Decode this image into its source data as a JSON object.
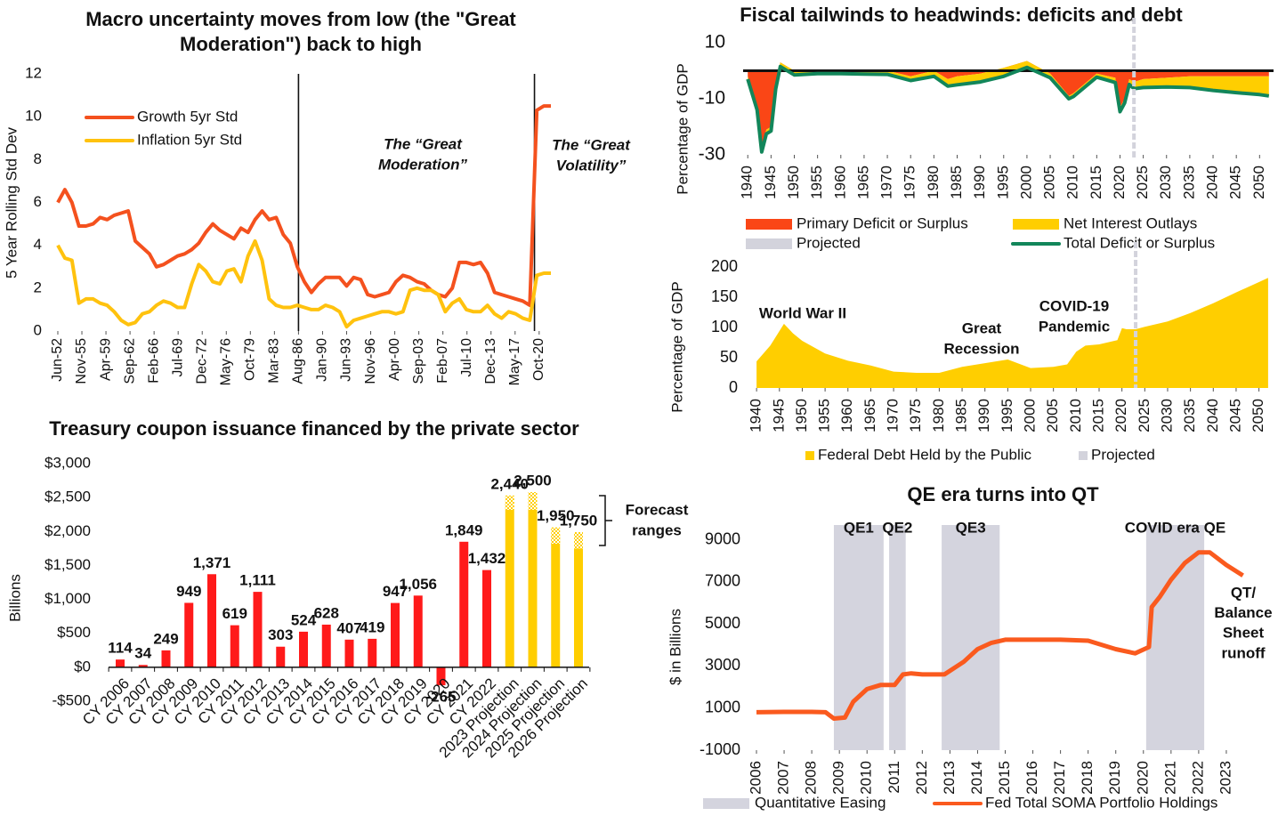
{
  "chart_data": [
    {
      "type": "line",
      "title": "Macro uncertainty moves from low (the \"Great Moderation\") back to high",
      "y_label": "5 Year Rolling Std Dev",
      "x": [
        "1952-06",
        "1953-06",
        "1954-06",
        "1955-06",
        "1956-06",
        "1957-06",
        "1958-06",
        "1959-06",
        "1960-06",
        "1961-06",
        "1962-06",
        "1963-06",
        "1964-06",
        "1965-06",
        "1966-06",
        "1967-06",
        "1968-06",
        "1969-06",
        "1970-06",
        "1971-06",
        "1972-06",
        "1973-06",
        "1974-06",
        "1975-06",
        "1976-06",
        "1977-06",
        "1978-06",
        "1979-06",
        "1980-06",
        "1981-06",
        "1982-06",
        "1983-06",
        "1984-06",
        "1985-06",
        "1986-06",
        "1987-06",
        "1988-06",
        "1989-06",
        "1990-06",
        "1991-06",
        "1992-06",
        "1993-06",
        "1994-06",
        "1995-06",
        "1996-06",
        "1997-06",
        "1998-06",
        "1999-06",
        "2000-06",
        "2001-06",
        "2002-06",
        "2003-06",
        "2004-06",
        "2005-06",
        "2006-06",
        "2007-06",
        "2008-06",
        "2009-06",
        "2010-06",
        "2011-06",
        "2012-06",
        "2013-06",
        "2014-06",
        "2015-06",
        "2016-06",
        "2017-06",
        "2018-06",
        "2019-06",
        "2020-06",
        "2021-06",
        "2022-06"
      ],
      "xlim": [
        "1952-03",
        "2022-09"
      ],
      "xticks": [
        {
          "value": "1952-06",
          "label": "Jun-52"
        },
        {
          "value": "1955-11",
          "label": "Nov-55"
        },
        {
          "value": "1959-04",
          "label": "Apr-59"
        },
        {
          "value": "1962-09",
          "label": "Sep-62"
        },
        {
          "value": "1966-02",
          "label": "Feb-66"
        },
        {
          "value": "1969-07",
          "label": "Jul-69"
        },
        {
          "value": "1972-12",
          "label": "Dec-72"
        },
        {
          "value": "1976-05",
          "label": "May-76"
        },
        {
          "value": "1979-10",
          "label": "Oct-79"
        },
        {
          "value": "1983-03",
          "label": "Mar-83"
        },
        {
          "value": "1986-08",
          "label": "Aug-86"
        },
        {
          "value": "1990-01",
          "label": "Jan-90"
        },
        {
          "value": "1993-06",
          "label": "Jun-93"
        },
        {
          "value": "1996-11",
          "label": "Nov-96"
        },
        {
          "value": "2000-04",
          "label": "Apr-00"
        },
        {
          "value": "2003-09",
          "label": "Sep-03"
        },
        {
          "value": "2007-02",
          "label": "Feb-07"
        },
        {
          "value": "2010-07",
          "label": "Jul-10"
        },
        {
          "value": "2013-12",
          "label": "Dec-13"
        },
        {
          "value": "2017-05",
          "label": "May-17"
        },
        {
          "value": "2020-10",
          "label": "Oct-20"
        }
      ],
      "ylim": [
        0,
        12
      ],
      "yticks": [
        0,
        2,
        4,
        6,
        8,
        10,
        12
      ],
      "legend": "upper left",
      "series": [
        {
          "name": "Growth 5yr Std",
          "color": "#f4511e",
          "values": [
            6.0,
            6.6,
            6.0,
            4.9,
            4.9,
            5.0,
            5.3,
            5.2,
            5.4,
            5.5,
            5.6,
            4.2,
            3.9,
            3.6,
            3.0,
            3.1,
            3.3,
            3.5,
            3.6,
            3.8,
            4.1,
            4.6,
            5.0,
            4.7,
            4.5,
            4.3,
            4.8,
            4.6,
            5.2,
            5.6,
            5.2,
            5.3,
            4.5,
            4.1,
            3.0,
            2.3,
            1.8,
            2.2,
            2.5,
            2.5,
            2.5,
            2.1,
            2.5,
            2.4,
            1.7,
            1.6,
            1.7,
            1.8,
            2.3,
            2.6,
            2.5,
            2.3,
            2.2,
            1.9,
            1.7,
            1.6,
            2.0,
            3.2,
            3.2,
            3.1,
            3.2,
            2.7,
            1.8,
            1.7,
            1.6,
            1.5,
            1.4,
            1.2,
            10.3,
            10.5,
            10.5
          ]
        },
        {
          "name": "Inflation 5yr Std",
          "color": "#ffc20e",
          "values": [
            4.0,
            3.4,
            3.3,
            1.3,
            1.5,
            1.5,
            1.3,
            1.2,
            0.9,
            0.5,
            0.3,
            0.4,
            0.8,
            0.9,
            1.2,
            1.4,
            1.3,
            1.1,
            1.1,
            2.2,
            3.1,
            2.8,
            2.3,
            2.2,
            2.8,
            2.9,
            2.3,
            3.5,
            4.2,
            3.3,
            1.5,
            1.2,
            1.1,
            1.1,
            1.2,
            1.1,
            1.0,
            1.0,
            1.2,
            1.1,
            0.9,
            0.2,
            0.5,
            0.6,
            0.7,
            0.8,
            0.9,
            0.9,
            0.8,
            0.9,
            1.9,
            2.0,
            1.9,
            1.9,
            1.7,
            0.9,
            1.3,
            1.5,
            1.0,
            0.9,
            0.9,
            1.2,
            0.8,
            0.6,
            0.9,
            0.8,
            0.6,
            0.5,
            2.6,
            2.7,
            2.7
          ]
        }
      ],
      "vlines": [
        "1986-08",
        "2020-02"
      ],
      "annotations": [
        {
          "lines": [
            "The “Great",
            "Moderation”"
          ]
        },
        {
          "lines": [
            "The “Great",
            "Volatility”"
          ]
        }
      ]
    },
    {
      "type": "area",
      "title": "Fiscal tailwinds to headwinds: deficits and debt",
      "y_label": "Percentage of GDP",
      "x": [
        1940,
        1942,
        1943,
        1944,
        1945,
        1946,
        1947,
        1950,
        1955,
        1960,
        1965,
        1970,
        1975,
        1980,
        1983,
        1985,
        1990,
        1995,
        2000,
        2005,
        2009,
        2010,
        2015,
        2019,
        2020,
        2021,
        2022,
        2023,
        2025,
        2030,
        2035,
        2040,
        2045,
        2050,
        2052
      ],
      "xlim": [
        1939,
        2053
      ],
      "xticks": [
        1940,
        1945,
        1950,
        1955,
        1960,
        1965,
        1970,
        1975,
        1980,
        1985,
        1990,
        1995,
        2000,
        2005,
        2010,
        2015,
        2020,
        2025,
        2030,
        2035,
        2040,
        2045,
        2050
      ],
      "ylim": [
        -30,
        10
      ],
      "yticks": [
        -30,
        -10,
        10
      ],
      "series": [
        {
          "name": "Primary Deficit or Surplus",
          "color": "#fa4616",
          "kind": "area",
          "values": [
            -2,
            -13,
            -28,
            -21,
            -20,
            -5,
            3,
            0,
            0,
            0,
            0,
            0,
            -2,
            0,
            -3,
            -2,
            -1,
            1,
            3.5,
            -1,
            -9,
            -8,
            -1,
            -2.5,
            -13,
            -10,
            -3,
            -4,
            -3,
            -2.5,
            -2,
            -2,
            -2,
            -2,
            -2
          ]
        },
        {
          "name": "Net Interest Outlays",
          "color": "#ffce00",
          "kind": "area",
          "stack": true,
          "values": [
            -1,
            -1,
            -1,
            -1.5,
            -1.5,
            -1.5,
            -1.5,
            -1.5,
            -1,
            -1,
            -1.2,
            -1.3,
            -1.5,
            -2,
            -2.5,
            -3,
            -3,
            -3,
            -2.3,
            -1.5,
            -1,
            -1.2,
            -1.3,
            -1.7,
            -1.6,
            -1.5,
            -1.9,
            -2.4,
            -3,
            -3.3,
            -4,
            -5,
            -5.8,
            -6.5,
            -7
          ]
        },
        {
          "name": "Total Deficit or Surplus",
          "color": "#12865a",
          "kind": "line",
          "values": [
            -3,
            -14,
            -29,
            -22.5,
            -21.5,
            -6.5,
            1.5,
            -1.5,
            -1,
            -1,
            -1.2,
            -1.3,
            -3.5,
            -2,
            -5.5,
            -5,
            -4,
            -2,
            1.2,
            -2.5,
            -10,
            -9.2,
            -2.3,
            -4.2,
            -14.6,
            -11.5,
            -4.9,
            -6.4,
            -6,
            -5.8,
            -6,
            -7,
            -7.8,
            -8.5,
            -9
          ]
        }
      ],
      "projected": {
        "name": "Projected",
        "color": "#d3d3dc",
        "x": 2023
      }
    },
    {
      "type": "area",
      "y_label": "Percentage of GDP",
      "x": [
        1940,
        1943,
        1946,
        1948,
        1950,
        1955,
        1960,
        1965,
        1970,
        1975,
        1980,
        1985,
        1990,
        1995,
        2000,
        2005,
        2008,
        2010,
        2012,
        2015,
        2019,
        2020,
        2021,
        2022,
        2023,
        2025,
        2030,
        2035,
        2040,
        2045,
        2050,
        2052
      ],
      "xlim": [
        1939,
        2053
      ],
      "xticks": [
        1940,
        1945,
        1950,
        1955,
        1960,
        1965,
        1970,
        1975,
        1980,
        1985,
        1990,
        1995,
        2000,
        2005,
        2010,
        2015,
        2020,
        2025,
        2030,
        2035,
        2040,
        2045,
        2050
      ],
      "ylim": [
        0,
        200
      ],
      "yticks": [
        0,
        50,
        100,
        150,
        200
      ],
      "series": [
        {
          "name": "Federal Debt Held by the Public",
          "color": "#ffce00",
          "kind": "area",
          "values": [
            44,
            70,
            106,
            90,
            78,
            57,
            45,
            37,
            27,
            25,
            25,
            35,
            41,
            47,
            33,
            35,
            39,
            60,
            70,
            72,
            79,
            99,
            97,
            97,
            97,
            101,
            110,
            124,
            140,
            158,
            175,
            182
          ]
        }
      ],
      "projected": {
        "name": "Projected",
        "color": "#d3d3dc",
        "x": 2023
      },
      "annotations": [
        {
          "lines": [
            "World War II"
          ]
        },
        {
          "lines": [
            "Great",
            "Recession"
          ]
        },
        {
          "lines": [
            "COVID-19",
            "Pandemic"
          ]
        }
      ]
    },
    {
      "type": "bar",
      "title": "Treasury coupon issuance financed by the private sector",
      "y_label": "Billions",
      "categories": [
        "CY 2006",
        "CY 2007",
        "CY 2008",
        "CY 2009",
        "CY 2010",
        "CY 2011",
        "CY 2012",
        "CY 2013",
        "CY 2014",
        "CY 2015",
        "CY 2016",
        "CY 2017",
        "CY 2018",
        "CY 2019",
        "CY 2020",
        "CY 2021",
        "CY 2022",
        "2023 Projection",
        "2024 Projection",
        "2025 Projection",
        "2026 Projection"
      ],
      "values": [
        114,
        34,
        249,
        949,
        1371,
        619,
        1111,
        303,
        524,
        628,
        407,
        419,
        947,
        1056,
        -265,
        1849,
        1432,
        2440,
        2500,
        1950,
        1750
      ],
      "value_labels": [
        "114",
        "34",
        "249",
        "949",
        "1,371",
        "619",
        "1,111",
        "303",
        "524",
        "628",
        "407",
        "419",
        "947",
        "1,056",
        "-265",
        "1,849",
        "1,432",
        "2,440",
        "2,500",
        "1,950",
        "1,750"
      ],
      "colors": [
        "#ff1a1a",
        "#ff1a1a",
        "#ff1a1a",
        "#ff1a1a",
        "#ff1a1a",
        "#ff1a1a",
        "#ff1a1a",
        "#ff1a1a",
        "#ff1a1a",
        "#ff1a1a",
        "#ff1a1a",
        "#ff1a1a",
        "#ff1a1a",
        "#ff1a1a",
        "#ff1a1a",
        "#ff1a1a",
        "#ff1a1a",
        "#ffce00",
        "#ffce00",
        "#ffce00",
        "#ffce00"
      ],
      "range_low": [
        null,
        null,
        null,
        null,
        null,
        null,
        null,
        null,
        null,
        null,
        null,
        null,
        null,
        null,
        null,
        null,
        null,
        2320,
        2320,
        1820,
        1750
      ],
      "range_high": [
        null,
        null,
        null,
        null,
        null,
        null,
        null,
        null,
        null,
        null,
        null,
        null,
        null,
        null,
        null,
        null,
        null,
        2530,
        2580,
        2060,
        1990
      ],
      "ylim": [
        -500,
        3000
      ],
      "yticks": [
        {
          "value": -500,
          "label": "-$500"
        },
        {
          "value": 0,
          "label": "$0"
        },
        {
          "value": 500,
          "label": "$500"
        },
        {
          "value": 1000,
          "label": "$1,000"
        },
        {
          "value": 1500,
          "label": "$1,500"
        },
        {
          "value": 2000,
          "label": "$2,000"
        },
        {
          "value": 2500,
          "label": "$2,500"
        },
        {
          "value": 3000,
          "label": "$3,000"
        }
      ],
      "annotations": [
        {
          "lines": [
            "Forecast",
            "ranges"
          ]
        }
      ]
    },
    {
      "type": "line",
      "title": "QE era turns into QT",
      "y_label": "$ in Billions",
      "x": [
        2006,
        2007,
        2008,
        2008.5,
        2008.8,
        2009.2,
        2009.5,
        2010,
        2010.5,
        2011,
        2011.3,
        2011.6,
        2012,
        2012.8,
        2013.5,
        2014,
        2014.5,
        2015,
        2016,
        2017,
        2018,
        2019,
        2019.7,
        2020.2,
        2020.3,
        2020.6,
        2021,
        2021.5,
        2022,
        2022.4,
        2023,
        2023.6
      ],
      "xlim": [
        2006,
        2024
      ],
      "xticks": [
        2006,
        2007,
        2008,
        2009,
        2010,
        2011,
        2012,
        2013,
        2014,
        2015,
        2016,
        2017,
        2018,
        2019,
        2020,
        2021,
        2022,
        2023
      ],
      "ylim": [
        -1000,
        9700
      ],
      "yticks": [
        -1000,
        1000,
        3000,
        5000,
        7000,
        9000
      ],
      "series": [
        {
          "name": "Fed Total SOMA Portfolio Holdings",
          "color": "#fa5a1e",
          "values": [
            800,
            820,
            820,
            800,
            500,
            550,
            1300,
            1900,
            2100,
            2100,
            2600,
            2650,
            2600,
            2600,
            3200,
            3800,
            4100,
            4250,
            4250,
            4250,
            4200,
            3800,
            3600,
            3900,
            5800,
            6300,
            7100,
            7900,
            8400,
            8400,
            7800,
            7300
          ]
        }
      ],
      "bands": {
        "name": "Quantitative Easing",
        "color": "#d4d4de",
        "periods": [
          {
            "label": "QE1",
            "start": 2008.8,
            "end": 2010.6
          },
          {
            "label": "QE2",
            "start": 2010.8,
            "end": 2011.4
          },
          {
            "label": "QE3",
            "start": 2012.7,
            "end": 2014.8
          },
          {
            "label": "COVID era QE",
            "start": 2020.1,
            "end": 2022.2
          }
        ]
      },
      "annotations": [
        {
          "lines": [
            "QT/",
            "Balance",
            "Sheet",
            "runoff"
          ]
        }
      ]
    }
  ]
}
